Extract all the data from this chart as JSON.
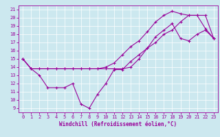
{
  "xlabel": "Windchill (Refroidissement éolien,°C)",
  "xlim": [
    -0.5,
    23.5
  ],
  "ylim": [
    8.5,
    21.5
  ],
  "yticks": [
    9,
    10,
    11,
    12,
    13,
    14,
    15,
    16,
    17,
    18,
    19,
    20,
    21
  ],
  "xticks": [
    0,
    1,
    2,
    3,
    4,
    5,
    6,
    7,
    8,
    9,
    10,
    11,
    12,
    13,
    14,
    15,
    16,
    17,
    18,
    19,
    20,
    21,
    22,
    23
  ],
  "bg_color": "#cce8ef",
  "line_color": "#990099",
  "grid_color": "#ffffff",
  "line1_x": [
    0,
    1,
    2,
    3,
    4,
    5,
    6,
    7,
    8,
    9,
    10,
    11,
    12,
    13,
    14,
    15,
    16,
    17,
    18,
    19,
    20,
    21,
    22,
    23
  ],
  "line1_y": [
    15,
    13.8,
    13.0,
    11.5,
    11.5,
    11.5,
    12.0,
    9.5,
    9.0,
    10.7,
    12.0,
    13.7,
    13.7,
    14.7,
    15.5,
    16.3,
    17.7,
    18.5,
    19.3,
    17.5,
    17.2,
    18.0,
    18.5,
    17.5
  ],
  "line2_x": [
    0,
    1,
    2,
    3,
    4,
    5,
    6,
    7,
    8,
    9,
    10,
    11,
    12,
    13,
    14,
    15,
    16,
    17,
    18,
    19,
    20,
    21,
    22,
    23
  ],
  "line2_y": [
    15,
    13.8,
    13.8,
    13.8,
    13.8,
    13.8,
    13.8,
    13.8,
    13.8,
    13.8,
    13.8,
    13.8,
    13.8,
    14.0,
    15.0,
    16.3,
    17.0,
    18.0,
    18.5,
    19.5,
    20.3,
    20.3,
    20.3,
    17.5
  ],
  "line3_x": [
    0,
    1,
    2,
    3,
    4,
    5,
    6,
    7,
    8,
    9,
    10,
    11,
    12,
    13,
    14,
    15,
    16,
    17,
    18,
    19,
    20,
    21,
    22,
    23
  ],
  "line3_y": [
    15,
    13.8,
    13.8,
    13.8,
    13.8,
    13.8,
    13.8,
    13.8,
    13.8,
    13.8,
    14.0,
    14.5,
    15.5,
    16.5,
    17.2,
    18.3,
    19.5,
    20.3,
    20.8,
    20.5,
    20.3,
    20.3,
    18.7,
    17.5
  ],
  "tick_fontsize": 5,
  "xlabel_fontsize": 5.5
}
